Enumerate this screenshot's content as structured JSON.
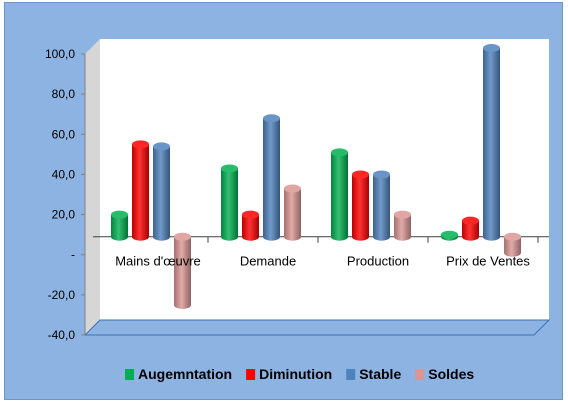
{
  "chart_data": {
    "type": "bar",
    "categories": [
      "Mains d'œuvre",
      "Demande",
      "Production",
      "Prix de Ventes"
    ],
    "series": [
      {
        "name": "Augemntation",
        "values": [
          11.0,
          34.0,
          42.0,
          1.0
        ],
        "color": "#00b050"
      },
      {
        "name": "Diminution",
        "values": [
          46.0,
          11.0,
          31.0,
          8.0
        ],
        "color": "#ff0000"
      },
      {
        "name": "Stable",
        "values": [
          45.0,
          59.0,
          31.0,
          94.0
        ],
        "color": "#4f81bd"
      },
      {
        "name": "Soldes",
        "values": [
          -34.0,
          24.0,
          11.0,
          -8.0
        ],
        "color": "#d99694"
      }
    ],
    "ylim": [
      -40,
      100
    ],
    "y_ticks": [
      {
        "value": 100,
        "label": "100,0"
      },
      {
        "value": 80,
        "label": "80,0"
      },
      {
        "value": 60,
        "label": "60,0"
      },
      {
        "value": 40,
        "label": "40,0"
      },
      {
        "value": 20,
        "label": "20,0"
      },
      {
        "value": 0,
        "label": "-"
      },
      {
        "value": -20,
        "label": "-20,0"
      },
      {
        "value": -40,
        "label": "-40,0"
      }
    ],
    "legend_position": "bottom",
    "grid": false,
    "background": "#8db3e2"
  }
}
